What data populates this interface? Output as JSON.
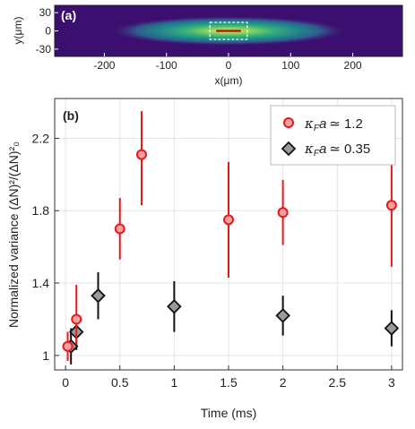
{
  "chart_data": [
    {
      "type": "heatmap",
      "panel_label": "(a)",
      "xlabel": "x(μm)",
      "ylabel": "y(μm)",
      "xlim": [
        -280,
        280
      ],
      "ylim": [
        -42,
        42
      ],
      "x_ticks": [
        "-200",
        "-100",
        "0",
        "100",
        "200"
      ],
      "x_tick_values": [
        -200,
        -100,
        0,
        100,
        200
      ],
      "y_ticks": [
        "-30",
        "0",
        "30"
      ],
      "y_tick_values": [
        -30,
        0,
        30
      ],
      "cloud": {
        "center": [
          0,
          0
        ],
        "sigma_x": 110,
        "sigma_y": 14
      },
      "highlight_region": {
        "x": [
          -30,
          30
        ],
        "y": [
          -14,
          14
        ],
        "style": "dashed white box"
      },
      "line_segment": {
        "x": [
          -20,
          20
        ],
        "y": 0,
        "color": "#cc1111"
      }
    },
    {
      "type": "scatter",
      "panel_label": "(b)",
      "xlabel": "Time (ms)",
      "ylabel": "Normalized variance (ΔN)²/(ΔN)²₀",
      "xlim": [
        -0.1,
        3.1
      ],
      "ylim": [
        0.92,
        2.42
      ],
      "x_ticks": [
        "0",
        "0.5",
        "1",
        "1.5",
        "2",
        "2.5",
        "3"
      ],
      "x_tick_values": [
        0,
        0.5,
        1,
        1.5,
        2,
        2.5,
        3
      ],
      "y_ticks": [
        "1",
        "1.4",
        "1.8",
        "2.2"
      ],
      "y_tick_values": [
        1,
        1.4,
        1.8,
        2.2
      ],
      "grid": true,
      "legend_placement": "top-right",
      "series": [
        {
          "name": "κFa ≃ 1.2",
          "legend_symbol": "κ",
          "legend_sub": "F",
          "legend_a": "a",
          "legend_rel": "≃ 1.2",
          "marker": "circle",
          "color": "#e8191c",
          "fill": "#f4a0a0",
          "x": [
            0.02,
            0.1,
            0.5,
            0.7,
            1.5,
            2.0,
            3.0
          ],
          "y": [
            1.05,
            1.2,
            1.7,
            2.11,
            1.75,
            1.79,
            1.83
          ],
          "err_low": [
            0.97,
            1.06,
            1.53,
            1.83,
            1.43,
            1.61,
            1.49
          ],
          "err_high": [
            1.13,
            1.39,
            1.87,
            2.35,
            2.07,
            1.97,
            2.17
          ]
        },
        {
          "name": "κFa ≃ 0.35",
          "legend_symbol": "κ",
          "legend_sub": "F",
          "legend_a": "a",
          "legend_rel": "≃ 0.35",
          "marker": "diamond",
          "color": "#111111",
          "fill": "#9a9a9a",
          "x": [
            0.05,
            0.1,
            0.3,
            1.0,
            2.0,
            3.0
          ],
          "y": [
            1.05,
            1.13,
            1.33,
            1.27,
            1.22,
            1.15
          ],
          "err_low": [
            0.95,
            1.03,
            1.2,
            1.13,
            1.11,
            1.05
          ],
          "err_high": [
            1.15,
            1.23,
            1.46,
            1.41,
            1.33,
            1.25
          ]
        }
      ]
    }
  ]
}
